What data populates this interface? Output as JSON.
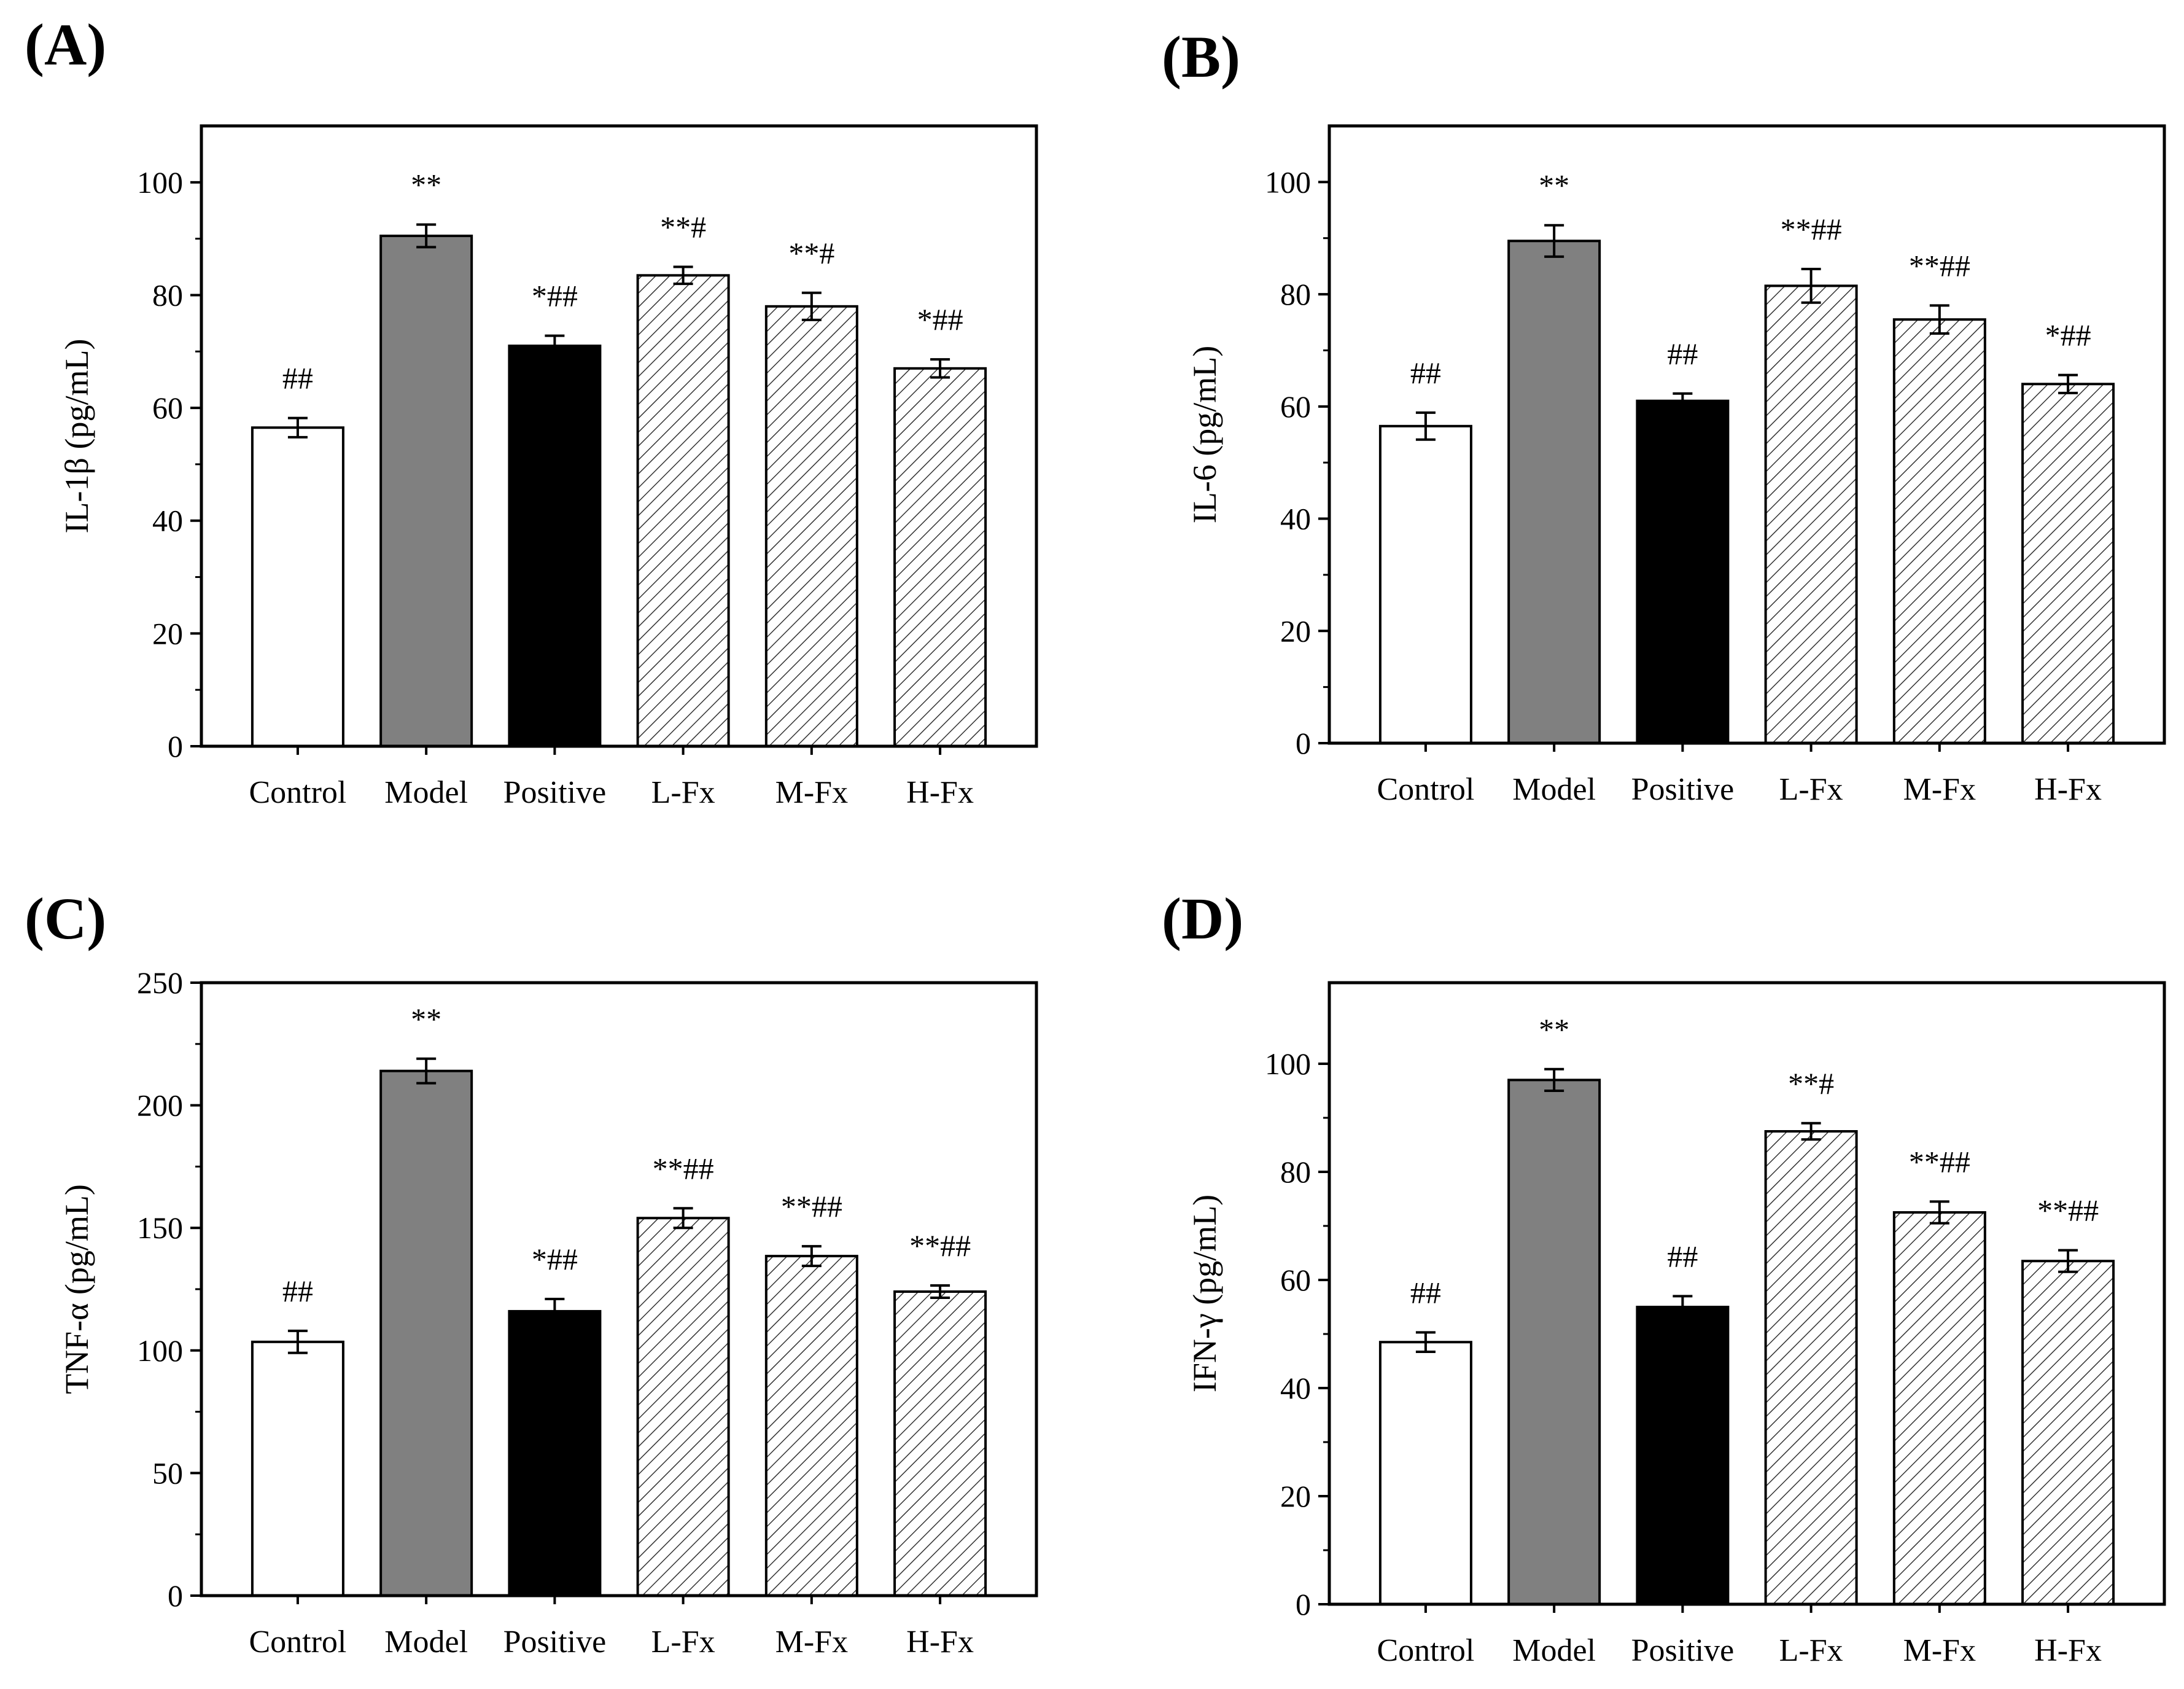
{
  "styles": {
    "Control": {
      "fill": "#ffffff",
      "pattern": "none"
    },
    "Model": {
      "fill": "#808080",
      "pattern": "none"
    },
    "Positive": {
      "fill": "#000000",
      "pattern": "none"
    },
    "L-Fx": {
      "fill": "#ffffff",
      "pattern": "hatch"
    },
    "M-Fx": {
      "fill": "#ffffff",
      "pattern": "hatch"
    },
    "H-Fx": {
      "fill": "#ffffff",
      "pattern": "hatch"
    }
  },
  "chart_data": [
    {
      "panel": "(A)",
      "type": "bar",
      "categories": [
        "Control",
        "Model",
        "Positive",
        "L-Fx",
        "M-Fx",
        "H-Fx"
      ],
      "values": [
        56.5,
        90.5,
        71,
        83.5,
        78,
        67
      ],
      "errors": [
        1.7,
        2.0,
        1.8,
        1.5,
        2.4,
        1.6
      ],
      "annotations": [
        "##",
        "**",
        "*##",
        "**#",
        "**#",
        "*##"
      ],
      "ylabel": "IL-1β (pg/mL)",
      "ylim": [
        0,
        110
      ],
      "yticks": [
        0,
        20,
        40,
        60,
        80,
        100
      ]
    },
    {
      "panel": "(B)",
      "type": "bar",
      "categories": [
        "Control",
        "Model",
        "Positive",
        "L-Fx",
        "M-Fx",
        "H-Fx"
      ],
      "values": [
        56.5,
        89.5,
        61,
        81.5,
        75.5,
        64
      ],
      "errors": [
        2.4,
        2.8,
        1.3,
        3.0,
        2.5,
        1.6
      ],
      "annotations": [
        "##",
        "**",
        "##",
        "**##",
        "**##",
        "*##"
      ],
      "ylabel": "IL-6 (pg/mL)",
      "ylim": [
        0,
        110
      ],
      "yticks": [
        0,
        20,
        40,
        60,
        80,
        100
      ]
    },
    {
      "panel": "(C)",
      "type": "bar",
      "categories": [
        "Control",
        "Model",
        "Positive",
        "L-Fx",
        "M-Fx",
        "H-Fx"
      ],
      "values": [
        103.5,
        214,
        116,
        154,
        138.5,
        124
      ],
      "errors": [
        4.5,
        5.0,
        5.0,
        4.0,
        4.0,
        2.5
      ],
      "annotations": [
        "##",
        "**",
        "*##",
        "**##",
        "**##",
        "**##"
      ],
      "ylabel": "TNF-α (pg/mL)",
      "ylim": [
        0,
        250
      ],
      "yticks": [
        0,
        50,
        100,
        150,
        200,
        250
      ]
    },
    {
      "panel": "(D)",
      "type": "bar",
      "categories": [
        "Control",
        "Model",
        "Positive",
        "L-Fx",
        "M-Fx",
        "H-Fx"
      ],
      "values": [
        48.5,
        97,
        55,
        87.5,
        72.5,
        63.5
      ],
      "errors": [
        1.8,
        2.0,
        2.0,
        1.5,
        2.0,
        2.0
      ],
      "annotations": [
        "##",
        "**",
        "##",
        "**#",
        "**##",
        "**##"
      ],
      "ylabel": "IFN-γ (pg/mL)",
      "ylim": [
        0,
        115
      ],
      "yticks": [
        0,
        20,
        40,
        60,
        80,
        100
      ]
    }
  ]
}
